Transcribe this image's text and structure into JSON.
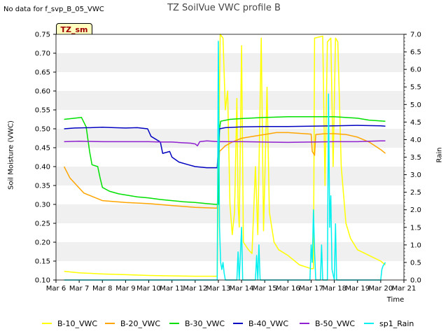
{
  "header": {
    "no_data_text": "No data for f_svp_B_05_VWC",
    "badge": "TZ_sm"
  },
  "chart_data": {
    "type": "line",
    "title": "TZ SoilVue VWC profile B",
    "xlabel": "Time",
    "ylabel": "Soil Moisture (VWC)",
    "y2label": "Rain",
    "xlim": [
      6,
      21
    ],
    "ylim": [
      0.1,
      0.75
    ],
    "y2lim": [
      0,
      7
    ],
    "x_tick_labels": [
      "Mar 6",
      "Mar 7",
      "Mar 8",
      "Mar 9",
      "Mar 10",
      "Mar 11",
      "Mar 12",
      "Mar 13",
      "Mar 14",
      "Mar 15",
      "Mar 16",
      "Mar 17",
      "Mar 18",
      "Mar 19",
      "Mar 20",
      "Mar 21"
    ],
    "y_tick_labels": [
      "0.10",
      "0.15",
      "0.20",
      "0.25",
      "0.30",
      "0.35",
      "0.40",
      "0.45",
      "0.50",
      "0.55",
      "0.60",
      "0.65",
      "0.70",
      "0.75"
    ],
    "y2_tick_labels": [
      "0.0",
      "0.5",
      "1.0",
      "1.5",
      "2.0",
      "2.5",
      "3.0",
      "3.5",
      "4.0",
      "4.5",
      "5.0",
      "5.5",
      "6.0",
      "6.5",
      "7.0"
    ],
    "grid": "horizontal bands",
    "legend_position": "bottom",
    "series": [
      {
        "name": "B-10_VWC",
        "color": "#ffff00",
        "axis": "left",
        "points": [
          [
            6.35,
            0.123
          ],
          [
            7,
            0.119
          ],
          [
            8,
            0.116
          ],
          [
            9,
            0.114
          ],
          [
            10,
            0.112
          ],
          [
            11,
            0.111
          ],
          [
            12,
            0.11
          ],
          [
            12.95,
            0.11
          ],
          [
            13.08,
            0.75
          ],
          [
            13.2,
            0.74
          ],
          [
            13.3,
            0.55
          ],
          [
            13.4,
            0.6
          ],
          [
            13.5,
            0.3
          ],
          [
            13.6,
            0.22
          ],
          [
            13.7,
            0.28
          ],
          [
            13.8,
            0.58
          ],
          [
            13.85,
            0.3
          ],
          [
            13.9,
            0.24
          ],
          [
            14.0,
            0.72
          ],
          [
            14.08,
            0.2
          ],
          [
            14.3,
            0.18
          ],
          [
            14.45,
            0.17
          ],
          [
            14.6,
            0.4
          ],
          [
            14.7,
            0.22
          ],
          [
            14.85,
            0.74
          ],
          [
            14.95,
            0.23
          ],
          [
            15.1,
            0.61
          ],
          [
            15.2,
            0.28
          ],
          [
            15.4,
            0.2
          ],
          [
            15.6,
            0.18
          ],
          [
            16.0,
            0.165
          ],
          [
            16.5,
            0.14
          ],
          [
            17.0,
            0.13
          ],
          [
            17.1,
            0.13
          ],
          [
            17.15,
            0.74
          ],
          [
            17.5,
            0.745
          ],
          [
            17.6,
            0.35
          ],
          [
            17.7,
            0.73
          ],
          [
            17.85,
            0.74
          ],
          [
            17.95,
            0.4
          ],
          [
            18.05,
            0.74
          ],
          [
            18.15,
            0.73
          ],
          [
            18.3,
            0.4
          ],
          [
            18.5,
            0.25
          ],
          [
            18.7,
            0.21
          ],
          [
            19.0,
            0.18
          ],
          [
            19.5,
            0.165
          ],
          [
            20.0,
            0.15
          ],
          [
            20.2,
            0.14
          ]
        ]
      },
      {
        "name": "B-20_VWC",
        "color": "#ffa500",
        "axis": "left",
        "points": [
          [
            6.35,
            0.4
          ],
          [
            6.6,
            0.37
          ],
          [
            6.9,
            0.35
          ],
          [
            7.2,
            0.33
          ],
          [
            7.6,
            0.32
          ],
          [
            8,
            0.31
          ],
          [
            9,
            0.305
          ],
          [
            10,
            0.302
          ],
          [
            11,
            0.297
          ],
          [
            12,
            0.292
          ],
          [
            12.95,
            0.29
          ],
          [
            13.05,
            0.44
          ],
          [
            13.3,
            0.455
          ],
          [
            13.6,
            0.465
          ],
          [
            14.0,
            0.475
          ],
          [
            14.5,
            0.48
          ],
          [
            15.0,
            0.485
          ],
          [
            15.5,
            0.49
          ],
          [
            16.0,
            0.49
          ],
          [
            16.5,
            0.488
          ],
          [
            17.0,
            0.486
          ],
          [
            17.05,
            0.44
          ],
          [
            17.15,
            0.43
          ],
          [
            17.2,
            0.485
          ],
          [
            17.6,
            0.487
          ],
          [
            18.0,
            0.487
          ],
          [
            18.5,
            0.485
          ],
          [
            19.0,
            0.478
          ],
          [
            19.5,
            0.465
          ],
          [
            20.0,
            0.445
          ],
          [
            20.2,
            0.435
          ]
        ]
      },
      {
        "name": "B-30_VWC",
        "color": "#00e000",
        "axis": "left",
        "points": [
          [
            6.35,
            0.525
          ],
          [
            6.8,
            0.528
          ],
          [
            7.1,
            0.53
          ],
          [
            7.3,
            0.505
          ],
          [
            7.45,
            0.44
          ],
          [
            7.55,
            0.405
          ],
          [
            7.8,
            0.4
          ],
          [
            7.9,
            0.37
          ],
          [
            8.0,
            0.345
          ],
          [
            8.3,
            0.335
          ],
          [
            8.7,
            0.328
          ],
          [
            9.0,
            0.325
          ],
          [
            9.5,
            0.32
          ],
          [
            10.0,
            0.317
          ],
          [
            10.5,
            0.313
          ],
          [
            11.0,
            0.31
          ],
          [
            11.5,
            0.307
          ],
          [
            12.0,
            0.305
          ],
          [
            12.5,
            0.302
          ],
          [
            12.9,
            0.3
          ],
          [
            13.0,
            0.3
          ],
          [
            13.05,
            0.5
          ],
          [
            13.1,
            0.52
          ],
          [
            13.5,
            0.525
          ],
          [
            14.0,
            0.527
          ],
          [
            15.0,
            0.53
          ],
          [
            16.0,
            0.532
          ],
          [
            17.0,
            0.532
          ],
          [
            18.0,
            0.532
          ],
          [
            19.0,
            0.528
          ],
          [
            19.5,
            0.523
          ],
          [
            20.2,
            0.52
          ]
        ]
      },
      {
        "name": "B-40_VWC",
        "color": "#0000c0",
        "axis": "left",
        "points": [
          [
            6.35,
            0.5
          ],
          [
            6.8,
            0.502
          ],
          [
            7.5,
            0.503
          ],
          [
            8.0,
            0.504
          ],
          [
            8.5,
            0.503
          ],
          [
            9.0,
            0.502
          ],
          [
            9.5,
            0.503
          ],
          [
            9.95,
            0.5
          ],
          [
            10.1,
            0.48
          ],
          [
            10.5,
            0.465
          ],
          [
            10.6,
            0.435
          ],
          [
            10.9,
            0.44
          ],
          [
            11.0,
            0.425
          ],
          [
            11.3,
            0.412
          ],
          [
            11.7,
            0.405
          ],
          [
            12.0,
            0.4
          ],
          [
            12.5,
            0.397
          ],
          [
            12.95,
            0.397
          ],
          [
            13.05,
            0.5
          ],
          [
            13.3,
            0.503
          ],
          [
            14.0,
            0.505
          ],
          [
            15.0,
            0.506
          ],
          [
            16.0,
            0.506
          ],
          [
            17.0,
            0.507
          ],
          [
            18.0,
            0.508
          ],
          [
            19.0,
            0.509
          ],
          [
            20.0,
            0.508
          ],
          [
            20.2,
            0.507
          ]
        ]
      },
      {
        "name": "B-50_VWC",
        "color": "#9020d0",
        "axis": "left",
        "points": [
          [
            6.35,
            0.466
          ],
          [
            7,
            0.467
          ],
          [
            8,
            0.466
          ],
          [
            9,
            0.466
          ],
          [
            10,
            0.466
          ],
          [
            10.5,
            0.465
          ],
          [
            11,
            0.465
          ],
          [
            11.5,
            0.463
          ],
          [
            11.8,
            0.462
          ],
          [
            12.0,
            0.46
          ],
          [
            12.1,
            0.455
          ],
          [
            12.2,
            0.466
          ],
          [
            12.5,
            0.468
          ],
          [
            13,
            0.466
          ],
          [
            14,
            0.466
          ],
          [
            15,
            0.465
          ],
          [
            16,
            0.464
          ],
          [
            17,
            0.465
          ],
          [
            18,
            0.466
          ],
          [
            19,
            0.466
          ],
          [
            20,
            0.468
          ],
          [
            20.2,
            0.468
          ]
        ]
      },
      {
        "name": "sp1_Rain",
        "color": "#00f0f0",
        "axis": "right",
        "points": [
          [
            6.35,
            0
          ],
          [
            12.95,
            0
          ],
          [
            13.0,
            6.8
          ],
          [
            13.05,
            1.5
          ],
          [
            13.1,
            0.5
          ],
          [
            13.15,
            0.3
          ],
          [
            13.2,
            0.5
          ],
          [
            13.25,
            0.2
          ],
          [
            13.3,
            0
          ],
          [
            13.8,
            0
          ],
          [
            13.85,
            0.8
          ],
          [
            13.9,
            0
          ],
          [
            14.0,
            1.5
          ],
          [
            14.05,
            0
          ],
          [
            14.6,
            0
          ],
          [
            14.65,
            0.7
          ],
          [
            14.7,
            0
          ],
          [
            14.75,
            1.0
          ],
          [
            14.8,
            0
          ],
          [
            16.95,
            0
          ],
          [
            17.0,
            1.0
          ],
          [
            17.05,
            0.5
          ],
          [
            17.1,
            2.0
          ],
          [
            17.15,
            0.8
          ],
          [
            17.2,
            0
          ],
          [
            17.4,
            0
          ],
          [
            17.45,
            1.0
          ],
          [
            17.5,
            0
          ],
          [
            17.7,
            0
          ],
          [
            17.75,
            5.3
          ],
          [
            17.8,
            1.5
          ],
          [
            17.85,
            2.4
          ],
          [
            17.9,
            0.3
          ],
          [
            18.0,
            0
          ],
          [
            18.05,
            1.6
          ],
          [
            18.1,
            0
          ],
          [
            20.0,
            0
          ],
          [
            20.05,
            0.3
          ],
          [
            20.1,
            0.4
          ],
          [
            20.2,
            0.5
          ]
        ]
      }
    ]
  }
}
